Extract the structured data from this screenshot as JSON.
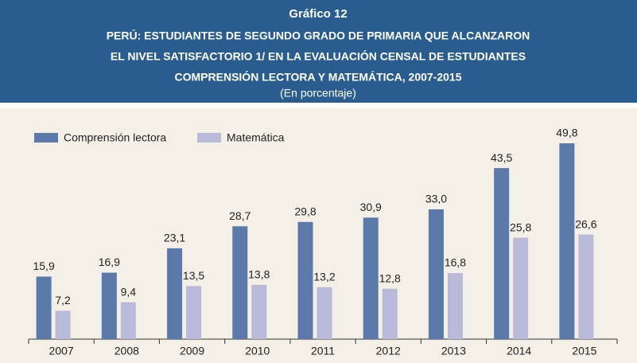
{
  "chart_data": {
    "type": "bar",
    "title": "Gráfico 12",
    "subtitle": [
      "PERÚ: ESTUDIANTES DE SEGUNDO GRADO DE PRIMARIA QUE ALCANZARON",
      "EL NIVEL SATISFACTORIO 1/ EN LA EVALUACIÓN CENSAL DE ESTUDIANTES",
      "COMPRENSIÓN LECTORA Y MATEMÁTICA, 2007-2015"
    ],
    "unit": "(En porcentaje)",
    "categories": [
      "2007",
      "2008",
      "2009",
      "2010",
      "2011",
      "2012",
      "2013",
      "2014",
      "2015"
    ],
    "series": [
      {
        "name": "Comprensión lectora",
        "color": "#5b79a9",
        "values": [
          15.9,
          16.9,
          23.1,
          28.7,
          29.8,
          30.9,
          33.0,
          43.5,
          49.8
        ],
        "value_labels": [
          "15,9",
          "16,9",
          "23,1",
          "28,7",
          "29,8",
          "30,9",
          "33,0",
          "43,5",
          "49,8"
        ]
      },
      {
        "name": "Matemática",
        "color": "#b9b9d9",
        "values": [
          7.2,
          9.4,
          13.5,
          13.8,
          13.2,
          12.8,
          16.8,
          25.8,
          26.6
        ],
        "value_labels": [
          "7,2",
          "9,4",
          "13,5",
          "13,8",
          "13,2",
          "12,8",
          "16,8",
          "25,8",
          "26,6"
        ]
      }
    ],
    "legend": "top-left"
  }
}
